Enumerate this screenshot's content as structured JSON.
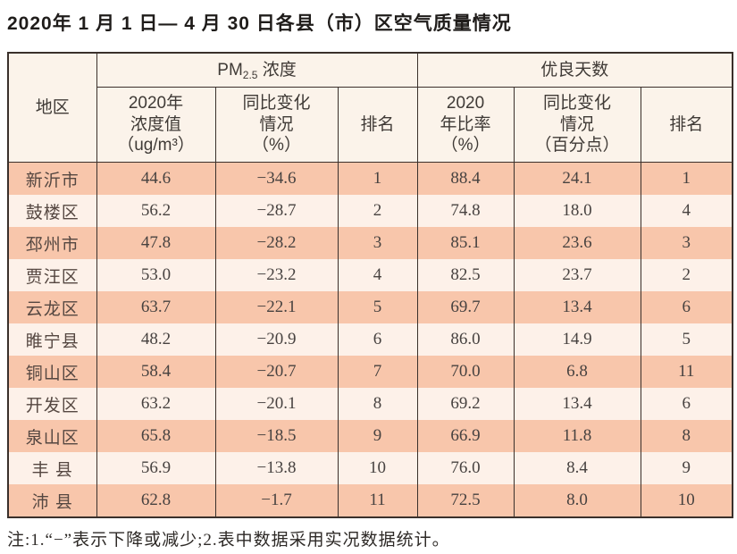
{
  "page": {
    "title": "2020年 1 月 1 日— 4 月 30 日各县（市）区空气质量情况",
    "note": "注:1.“−”表示下降或减少;2.表中数据采用实况数据统计。"
  },
  "colors": {
    "row_odd_bg": "#f8c6ab",
    "row_even_bg": "#fdf1e9",
    "header_bg": "#fbf3ea",
    "border": "#3a302b",
    "title_text": "#1f1c1a",
    "cell_text": "#474240"
  },
  "table": {
    "header": {
      "region": "地区",
      "pm_group": {
        "prefix": "PM",
        "sub": "2.5",
        "suffix": " 浓度"
      },
      "good_group": "优良天数",
      "pm_value": "2020年\n浓度值\n（ug/m³）",
      "pm_change": "同比变化\n情况\n（%）",
      "pm_rank": "排名",
      "good_rate": "2020\n年比率\n（%）",
      "good_change": "同比变化\n情况\n（百分点）",
      "good_rank": "排名"
    },
    "rows": [
      {
        "region": "新沂市",
        "pm_value": "44.6",
        "pm_change": "−34.6",
        "pm_rank": "1",
        "good_rate": "88.4",
        "good_change": "24.1",
        "good_rank": "1"
      },
      {
        "region": "鼓楼区",
        "pm_value": "56.2",
        "pm_change": "−28.7",
        "pm_rank": "2",
        "good_rate": "74.8",
        "good_change": "18.0",
        "good_rank": "4"
      },
      {
        "region": "邳州市",
        "pm_value": "47.8",
        "pm_change": "−28.2",
        "pm_rank": "3",
        "good_rate": "85.1",
        "good_change": "23.6",
        "good_rank": "3"
      },
      {
        "region": "贾汪区",
        "pm_value": "53.0",
        "pm_change": "−23.2",
        "pm_rank": "4",
        "good_rate": "82.5",
        "good_change": "23.7",
        "good_rank": "2"
      },
      {
        "region": "云龙区",
        "pm_value": "63.7",
        "pm_change": "−22.1",
        "pm_rank": "5",
        "good_rate": "69.7",
        "good_change": "13.4",
        "good_rank": "6"
      },
      {
        "region": "睢宁县",
        "pm_value": "48.2",
        "pm_change": "−20.9",
        "pm_rank": "6",
        "good_rate": "86.0",
        "good_change": "14.9",
        "good_rank": "5"
      },
      {
        "region": "铜山区",
        "pm_value": "58.4",
        "pm_change": "−20.7",
        "pm_rank": "7",
        "good_rate": "70.0",
        "good_change": "6.8",
        "good_rank": "11"
      },
      {
        "region": "开发区",
        "pm_value": "63.2",
        "pm_change": "−20.1",
        "pm_rank": "8",
        "good_rate": "69.2",
        "good_change": "13.4",
        "good_rank": "6"
      },
      {
        "region": "泉山区",
        "pm_value": "65.8",
        "pm_change": "−18.5",
        "pm_rank": "9",
        "good_rate": "66.9",
        "good_change": "11.8",
        "good_rank": "8"
      },
      {
        "region": "丰 县",
        "pm_value": "56.9",
        "pm_change": "−13.8",
        "pm_rank": "10",
        "good_rate": "76.0",
        "good_change": "8.4",
        "good_rank": "9"
      },
      {
        "region": "沛 县",
        "pm_value": "62.8",
        "pm_change": "−1.7",
        "pm_rank": "11",
        "good_rate": "72.5",
        "good_change": "8.0",
        "good_rank": "10"
      }
    ]
  }
}
